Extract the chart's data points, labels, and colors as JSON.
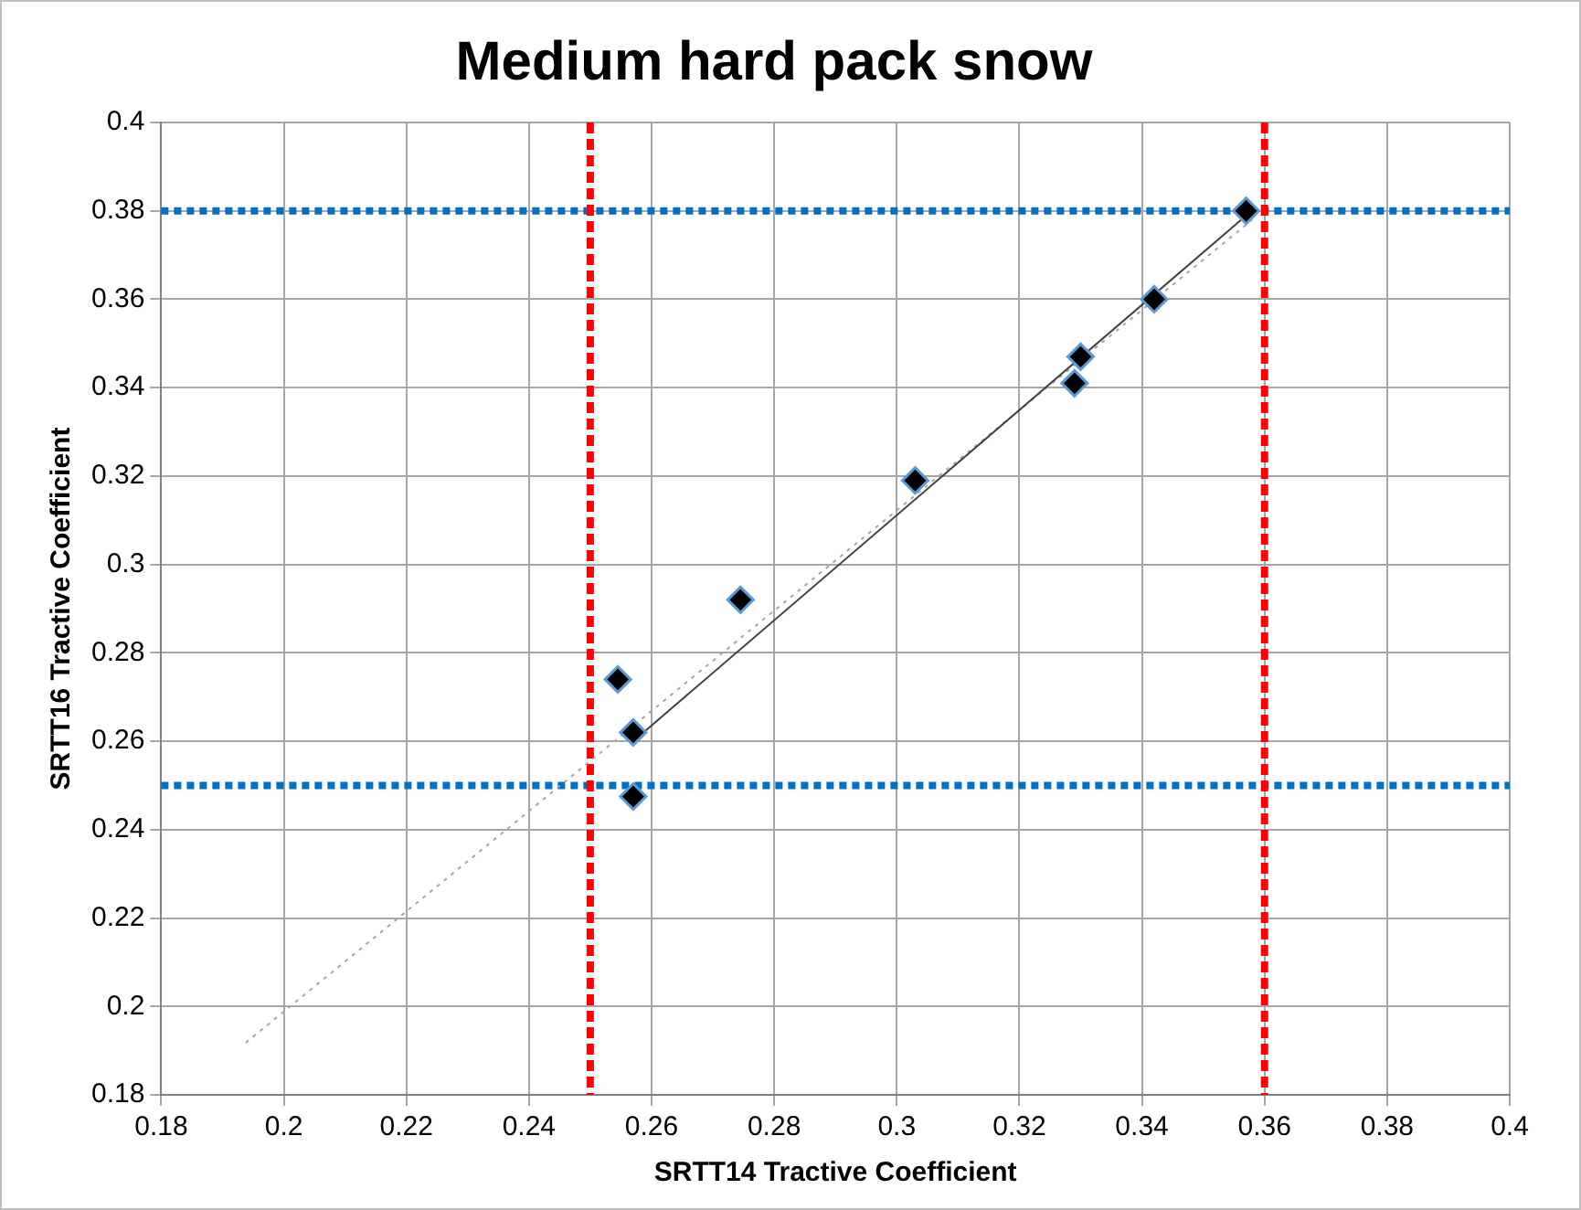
{
  "chart_data": {
    "type": "scatter",
    "title": "Medium hard pack snow",
    "xlabel": "SRTT14 Tractive Coefficient",
    "ylabel": "SRTT16 Tractive Coefficient",
    "xlim": [
      0.18,
      0.4
    ],
    "ylim": [
      0.18,
      0.4
    ],
    "xticks": [
      0.18,
      0.2,
      0.22,
      0.24,
      0.26,
      0.28,
      0.3,
      0.32,
      0.34,
      0.36,
      0.38,
      0.4
    ],
    "yticks": [
      0.18,
      0.2,
      0.22,
      0.24,
      0.26,
      0.28,
      0.3,
      0.32,
      0.34,
      0.36,
      0.38,
      0.4
    ],
    "grid": true,
    "legend": false,
    "marker": "diamond",
    "series": [
      {
        "type": "scatter",
        "color": "#000000",
        "x": [
          0.357,
          0.342,
          0.33,
          0.329,
          0.303,
          0.2745,
          0.2545,
          0.257,
          0.257
        ],
        "values": [
          0.38,
          0.36,
          0.347,
          0.341,
          0.319,
          0.292,
          0.274,
          0.262,
          0.2475
        ]
      },
      {
        "type": "line",
        "color": "#404040",
        "marker": "none",
        "line_style": "solid",
        "x": [
          0.2575,
          0.3584
        ],
        "values": [
          0.2606,
          0.3806
        ]
      },
      {
        "type": "line",
        "color": "#a6a6a6",
        "marker": "none",
        "line_style": "dotted",
        "x": [
          0.1938,
          0.358
        ],
        "values": [
          0.1918,
          0.378
        ]
      }
    ],
    "ref_lines": [
      {
        "axis": "y",
        "value": 0.38,
        "color": "#0070c0",
        "line_style": "dotted"
      },
      {
        "axis": "y",
        "value": 0.25,
        "color": "#0070c0",
        "line_style": "dotted"
      },
      {
        "axis": "x",
        "value": 0.25,
        "color": "#ff0000",
        "line_style": "dashed"
      },
      {
        "axis": "x",
        "value": 0.36,
        "color": "#ff0000",
        "line_style": "dashed"
      }
    ]
  }
}
